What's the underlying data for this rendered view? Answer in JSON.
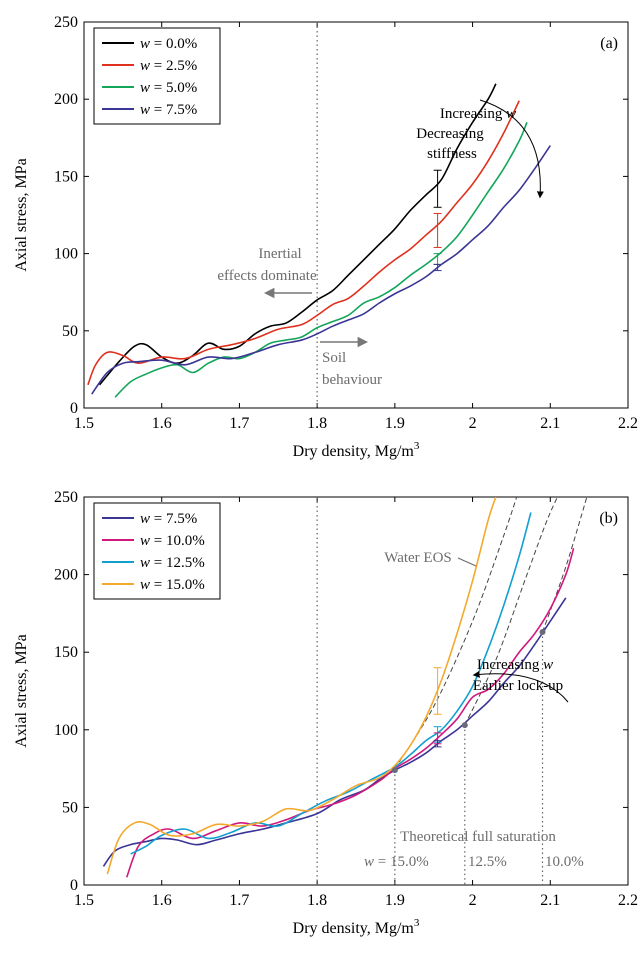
{
  "chart_data": [
    {
      "panel_label": "(a)",
      "type": "line",
      "xlabel": "Dry density, Mg/m3",
      "xlabel_main": "Dry density, Mg/m",
      "xlabel_sup": "3",
      "ylabel": "Axial stress, MPa",
      "xlim": [
        1.5,
        2.2
      ],
      "ylim": [
        0,
        250
      ],
      "x_ticks": [
        1.5,
        1.6,
        1.7,
        1.8,
        1.9,
        2.0,
        2.1,
        2.2
      ],
      "x_tick_labels": [
        "1.5",
        "1.6",
        "1.7",
        "1.8",
        "1.9",
        "2",
        "2.1",
        "2.2"
      ],
      "y_ticks": [
        0,
        50,
        100,
        150,
        200,
        250
      ],
      "y_tick_labels": [
        "0",
        "50",
        "100",
        "150",
        "200",
        "250"
      ],
      "legend_position": "top-left",
      "series": [
        {
          "name": "w = 0.0%",
          "name_var": "w",
          "name_rest": " = 0.0%",
          "color": "#000000",
          "x": [
            1.52,
            1.545,
            1.565,
            1.58,
            1.6,
            1.62,
            1.64,
            1.66,
            1.68,
            1.7,
            1.72,
            1.74,
            1.76,
            1.78,
            1.8,
            1.82,
            1.84,
            1.86,
            1.88,
            1.9,
            1.92,
            1.94,
            1.96,
            1.98,
            2.0,
            2.02,
            2.03
          ],
          "y": [
            15,
            30,
            40,
            41,
            33,
            29,
            34,
            42,
            38,
            40,
            48,
            53,
            55,
            62,
            70,
            76,
            86,
            96,
            106,
            116,
            128,
            138,
            148,
            168,
            185,
            200,
            210
          ]
        },
        {
          "name": "w = 2.5%",
          "name_var": "w",
          "name_rest": " = 2.5%",
          "color": "#e0301e",
          "x": [
            1.505,
            1.515,
            1.53,
            1.55,
            1.57,
            1.6,
            1.63,
            1.66,
            1.69,
            1.72,
            1.75,
            1.78,
            1.8,
            1.82,
            1.84,
            1.86,
            1.88,
            1.9,
            1.92,
            1.94,
            1.96,
            1.98,
            2.0,
            2.02,
            2.04,
            2.06
          ],
          "y": [
            15,
            28,
            36,
            34,
            29,
            33,
            32,
            38,
            41,
            45,
            51,
            54,
            60,
            67,
            71,
            79,
            88,
            96,
            103,
            112,
            121,
            133,
            145,
            160,
            178,
            199
          ]
        },
        {
          "name": "w = 5.0%",
          "name_var": "w",
          "name_rest": " = 5.0%",
          "color": "#13a55a",
          "x": [
            1.54,
            1.56,
            1.58,
            1.6,
            1.62,
            1.64,
            1.66,
            1.68,
            1.7,
            1.72,
            1.74,
            1.76,
            1.78,
            1.8,
            1.82,
            1.84,
            1.86,
            1.88,
            1.9,
            1.92,
            1.94,
            1.96,
            1.98,
            2.0,
            2.02,
            2.04,
            2.06,
            2.07
          ],
          "y": [
            7,
            17,
            22,
            26,
            28,
            23,
            29,
            33,
            32,
            36,
            42,
            44,
            46,
            52,
            56,
            60,
            68,
            72,
            78,
            86,
            93,
            101,
            111,
            125,
            140,
            155,
            173,
            185
          ]
        },
        {
          "name": "w = 7.5%",
          "name_var": "w",
          "name_rest": " = 7.5%",
          "color": "#3b3595",
          "x": [
            1.51,
            1.53,
            1.55,
            1.57,
            1.6,
            1.63,
            1.66,
            1.69,
            1.72,
            1.75,
            1.78,
            1.8,
            1.82,
            1.84,
            1.86,
            1.88,
            1.9,
            1.92,
            1.94,
            1.96,
            1.98,
            2.0,
            2.02,
            2.04,
            2.06,
            2.08,
            2.1
          ],
          "y": [
            9,
            23,
            29,
            30,
            31,
            28,
            33,
            32,
            36,
            41,
            44,
            48,
            53,
            57,
            61,
            68,
            74,
            79,
            85,
            93,
            100,
            109,
            118,
            130,
            141,
            155,
            170
          ]
        }
      ],
      "error_bars": [
        {
          "series": "w = 0.0%",
          "x": 1.955,
          "y": 142,
          "low": 130,
          "high": 154
        },
        {
          "series": "w = 2.5%",
          "x": 1.955,
          "y": 115,
          "low": 104,
          "high": 126
        },
        {
          "series": "w = 5.0%",
          "x": 1.955,
          "y": 96,
          "low": 93,
          "high": 100
        },
        {
          "series": "w = 7.5%",
          "x": 1.955,
          "y": 91,
          "low": 89,
          "high": 93
        }
      ],
      "vertical_line": {
        "x": 1.8,
        "style": "dotted"
      },
      "annotations": {
        "increasing_prefix": "Increasing ",
        "increasing_var": "w",
        "trend_text": "Decreasing",
        "trend_text2": "stiffness",
        "inertial_line1": "Inertial",
        "inertial_line2": "effects dominate",
        "soil_line1": "Soil",
        "soil_line2": "behaviour"
      }
    },
    {
      "panel_label": "(b)",
      "type": "line",
      "xlabel": "Dry density, Mg/m3",
      "xlabel_main": "Dry density, Mg/m",
      "xlabel_sup": "3",
      "ylabel": "Axial stress, MPa",
      "xlim": [
        1.5,
        2.2
      ],
      "ylim": [
        0,
        250
      ],
      "x_ticks": [
        1.5,
        1.6,
        1.7,
        1.8,
        1.9,
        2.0,
        2.1,
        2.2
      ],
      "x_tick_labels": [
        "1.5",
        "1.6",
        "1.7",
        "1.8",
        "1.9",
        "2",
        "2.1",
        "2.2"
      ],
      "y_ticks": [
        0,
        50,
        100,
        150,
        200,
        250
      ],
      "y_tick_labels": [
        "0",
        "50",
        "100",
        "150",
        "200",
        "250"
      ],
      "legend_position": "top-left",
      "series": [
        {
          "name": "w = 7.5%",
          "name_var": "w",
          "name_rest": " = 7.5%",
          "color": "#3b3595",
          "x": [
            1.525,
            1.54,
            1.56,
            1.58,
            1.6,
            1.62,
            1.645,
            1.67,
            1.7,
            1.73,
            1.76,
            1.8,
            1.83,
            1.86,
            1.88,
            1.9,
            1.92,
            1.94,
            1.96,
            1.98,
            2.0,
            2.02,
            2.04,
            2.06,
            2.08,
            2.1,
            2.12
          ],
          "y": [
            12,
            22,
            26,
            28,
            30,
            29,
            26,
            29,
            33,
            36,
            40,
            46,
            55,
            61,
            68,
            74,
            79,
            85,
            93,
            100,
            109,
            118,
            130,
            141,
            155,
            170,
            185
          ]
        },
        {
          "name": "w = 10.0%",
          "name_var": "w",
          "name_rest": " = 10.0%",
          "color": "#d0187e",
          "x": [
            1.555,
            1.57,
            1.59,
            1.61,
            1.64,
            1.67,
            1.7,
            1.73,
            1.76,
            1.79,
            1.82,
            1.85,
            1.88,
            1.9,
            1.92,
            1.94,
            1.96,
            1.98,
            2.0,
            2.02,
            2.04,
            2.06,
            2.08,
            2.1,
            2.12,
            2.13
          ],
          "y": [
            5,
            25,
            33,
            36,
            30,
            35,
            40,
            38,
            42,
            48,
            52,
            58,
            67,
            75,
            81,
            88,
            97,
            107,
            121,
            126,
            136,
            150,
            162,
            178,
            200,
            217
          ]
        },
        {
          "name": "w = 12.5%",
          "name_var": "w",
          "name_rest": " = 12.5%",
          "color": "#13a0d0",
          "x": [
            1.56,
            1.58,
            1.6,
            1.63,
            1.66,
            1.69,
            1.72,
            1.75,
            1.78,
            1.81,
            1.84,
            1.87,
            1.9,
            1.92,
            1.94,
            1.96,
            1.98,
            2.0,
            2.02,
            2.04,
            2.06,
            2.075
          ],
          "y": [
            20,
            25,
            32,
            36,
            30,
            34,
            40,
            38,
            46,
            54,
            60,
            68,
            76,
            84,
            93,
            100,
            112,
            128,
            152,
            180,
            212,
            240
          ]
        },
        {
          "name": "w = 15.0%",
          "name_var": "w",
          "name_rest": " = 15.0%",
          "color": "#f3a92d",
          "x": [
            1.53,
            1.545,
            1.565,
            1.585,
            1.61,
            1.64,
            1.67,
            1.7,
            1.73,
            1.76,
            1.79,
            1.82,
            1.85,
            1.88,
            1.9,
            1.92,
            1.94,
            1.96,
            1.98,
            2.0,
            2.02,
            2.03
          ],
          "y": [
            7,
            30,
            40,
            39,
            32,
            33,
            39,
            38,
            41,
            49,
            48,
            55,
            64,
            69,
            77,
            90,
            108,
            132,
            162,
            196,
            235,
            250
          ]
        }
      ],
      "error_bars": [
        {
          "series": "w = 15.0%",
          "x": 1.955,
          "y": 125,
          "low": 110,
          "high": 140
        },
        {
          "series": "w = 12.5%",
          "x": 1.955,
          "y": 97,
          "low": 92,
          "high": 102
        },
        {
          "series": "w = 10.0%",
          "x": 1.955,
          "y": 95,
          "low": 91,
          "high": 98
        },
        {
          "series": "w = 7.5%",
          "x": 1.955,
          "y": 91,
          "low": 89,
          "high": 93
        }
      ],
      "water_eos": {
        "label": "Water EOS",
        "curves": [
          {
            "x": [
              1.9,
              1.95,
              2.0,
              2.04,
              2.06
            ],
            "y": [
              75,
              115,
              170,
              225,
              255
            ]
          },
          {
            "x": [
              1.99,
              2.03,
              2.07,
              2.1,
              2.13
            ],
            "y": [
              103,
              145,
              200,
              240,
              270
            ]
          },
          {
            "x": [
              2.09,
              2.12,
              2.15
            ],
            "y": [
              163,
              205,
              255
            ]
          }
        ]
      },
      "saturation_points": [
        {
          "label": "15.0%",
          "x": 1.9,
          "y": 74
        },
        {
          "label": "12.5%",
          "x": 1.99,
          "y": 103
        },
        {
          "label": "10.0%",
          "x": 2.09,
          "y": 163
        }
      ],
      "vertical_line": {
        "x": 1.8,
        "style": "dotted"
      },
      "annotations": {
        "increasing_prefix": "Increasing ",
        "increasing_var": "w",
        "trend_text": "Earlier lock-up",
        "saturation_title": "Theoretical full saturation",
        "w_prefix": "w",
        "w_eq": " = "
      }
    }
  ]
}
